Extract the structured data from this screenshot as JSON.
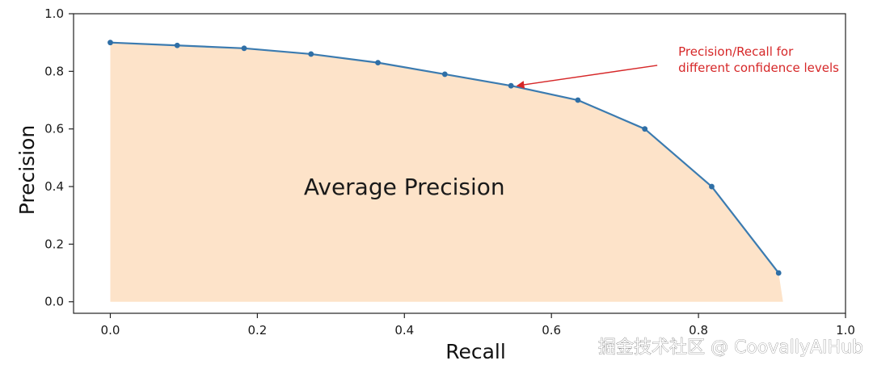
{
  "colors": {
    "line": "#3b7bb0",
    "marker": "#2f6fa6",
    "area_fill": "#fde3c9",
    "annotation": "#d62728",
    "axis": "#222222"
  },
  "watermark": "掘金技术社区 @ CoovallyAIHub",
  "chart_data": {
    "type": "line",
    "title": "",
    "xlabel": "Recall",
    "ylabel": "Precision",
    "xlim": [
      -0.05,
      1.0
    ],
    "ylim": [
      -0.04,
      1.0
    ],
    "x_ticks": [
      0.0,
      0.2,
      0.4,
      0.6,
      0.8,
      1.0
    ],
    "y_ticks": [
      0.0,
      0.2,
      0.4,
      0.6,
      0.8,
      1.0
    ],
    "x_tick_labels": [
      "0.0",
      "0.2",
      "0.4",
      "0.6",
      "0.8",
      "1.0"
    ],
    "y_tick_labels": [
      "0.0",
      "0.2",
      "0.4",
      "0.6",
      "0.8",
      "1.0"
    ],
    "grid": false,
    "legend": "none",
    "filled_area_label": "Average Precision",
    "series": [
      {
        "x": [
          0.0,
          0.091,
          0.182,
          0.273,
          0.364,
          0.455,
          0.545,
          0.636,
          0.727,
          0.818,
          0.909
        ],
        "y": [
          0.9,
          0.89,
          0.88,
          0.86,
          0.83,
          0.79,
          0.75,
          0.7,
          0.6,
          0.4,
          0.1
        ]
      }
    ],
    "annotation": {
      "lines": [
        "Precision/Recall for",
        "different confidence levels"
      ],
      "point": [
        0.55,
        0.75
      ],
      "text_anchor_data": [
        0.7,
        0.86
      ]
    }
  }
}
